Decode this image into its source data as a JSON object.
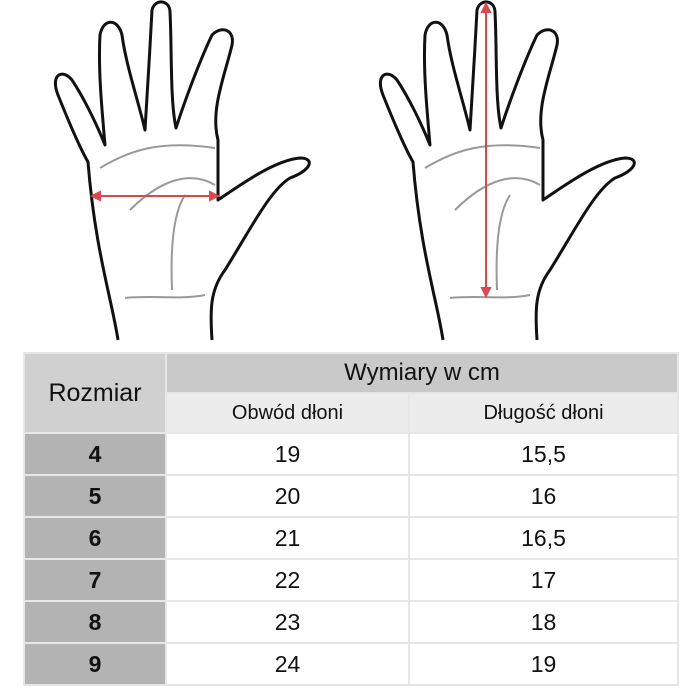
{
  "colors": {
    "measure_arrow": "#d9494f",
    "header": "#c9c9c9",
    "subheader": "#ececec",
    "size_column": "#b3b3b3"
  },
  "illustrations": [
    {
      "name": "hand-circumference-diagram",
      "measure": "palm width (horizontal arrow)"
    },
    {
      "name": "hand-length-diagram",
      "measure": "palm length (vertical arrow)"
    }
  ],
  "table": {
    "size_header": "Rozmiar",
    "group_header": "Wymiary w cm",
    "columns": [
      "Obwód dłoni",
      "Długość dłoni"
    ],
    "rows": [
      {
        "size": "4",
        "circumference": "19",
        "length": "15,5"
      },
      {
        "size": "5",
        "circumference": "20",
        "length": "16"
      },
      {
        "size": "6",
        "circumference": "21",
        "length": "16,5"
      },
      {
        "size": "7",
        "circumference": "22",
        "length": "17"
      },
      {
        "size": "8",
        "circumference": "23",
        "length": "18"
      },
      {
        "size": "9",
        "circumference": "24",
        "length": "19"
      }
    ]
  }
}
